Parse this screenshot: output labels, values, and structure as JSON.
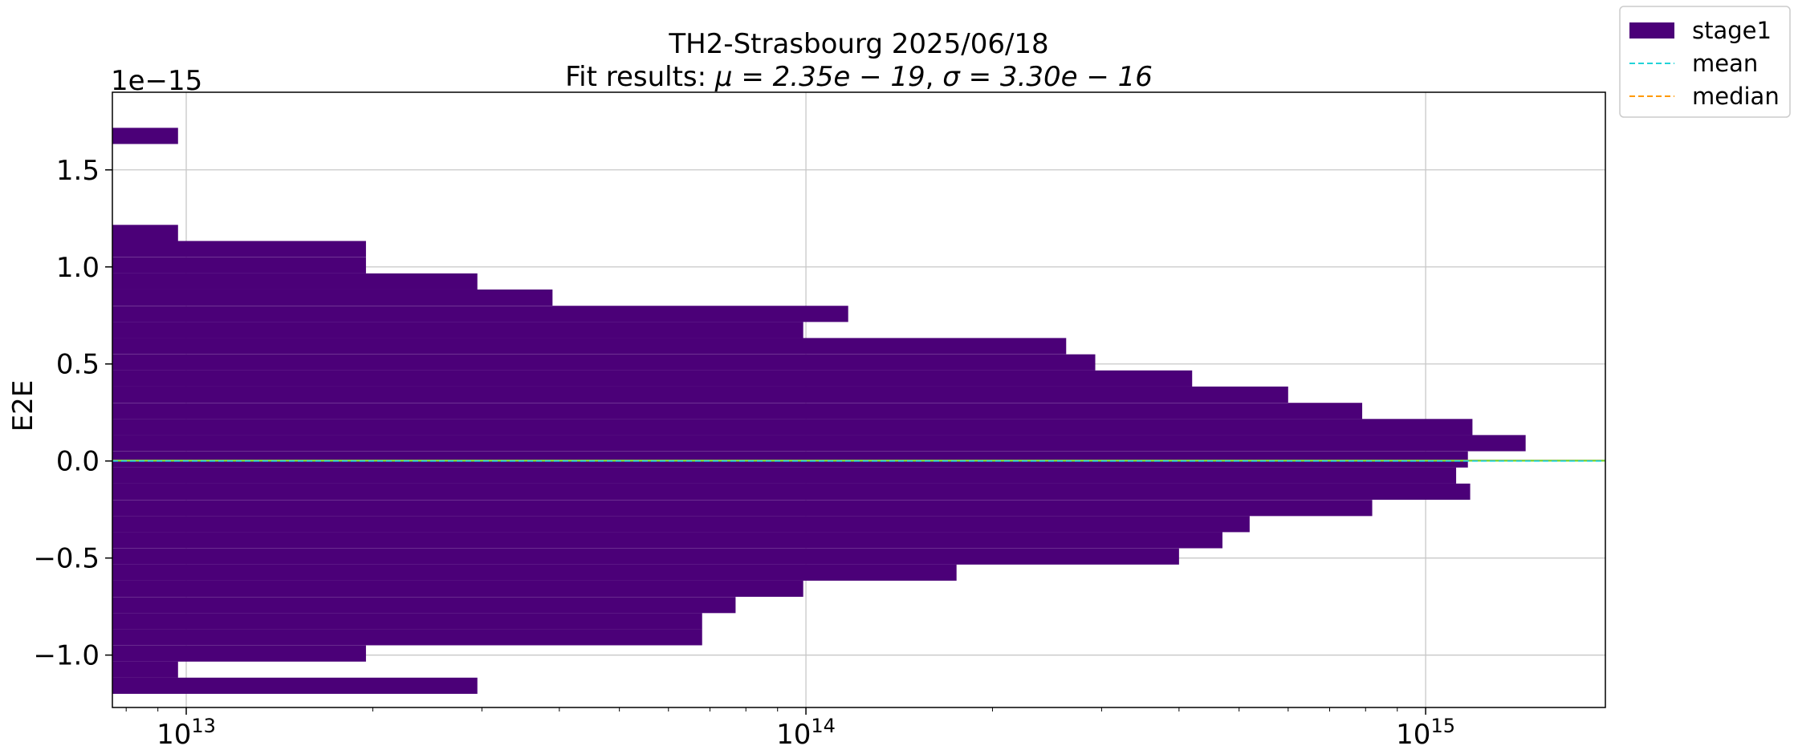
{
  "chart_data": {
    "type": "bar",
    "orientation": "horizontal",
    "title": "TH2-Strasbourg 2025/06/18",
    "subtitle_prefix": "Fit results: ",
    "subtitle_mu": "μ = 2.35e − 19",
    "subtitle_sigma": "σ = 3.30e − 16",
    "xlabel": "",
    "ylabel": "E2E",
    "y_offset_label": "1e−15",
    "x_scale": "log",
    "xlim": [
      7600000000000.0,
      1950000000000000.0
    ],
    "ylim": [
      -1.27,
      1.9
    ],
    "grid": true,
    "x_tick_labels": [
      {
        "value": 10000000000000.0,
        "base": "10",
        "exp": "13"
      },
      {
        "value": 100000000000000.0,
        "base": "10",
        "exp": "14"
      },
      {
        "value": 1000000000000000.0,
        "base": "10",
        "exp": "15"
      }
    ],
    "y_ticks": [
      {
        "value": 1.5,
        "label": "1.5"
      },
      {
        "value": 1.0,
        "label": "1.0"
      },
      {
        "value": 0.5,
        "label": "0.5"
      },
      {
        "value": 0.0,
        "label": "0.0"
      },
      {
        "value": -0.5,
        "label": "−0.5"
      },
      {
        "value": -1.0,
        "label": "−1.0"
      }
    ],
    "bin_width": 0.0833,
    "bars_y_unit": "1e-15",
    "bars": [
      {
        "y": 1.675,
        "x": 9700000000000.0
      },
      {
        "y": 1.175,
        "x": 9700000000000.0
      },
      {
        "y": 1.092,
        "x": 19500000000000.0
      },
      {
        "y": 1.008,
        "x": 19500000000000.0
      },
      {
        "y": 0.925,
        "x": 29500000000000.0
      },
      {
        "y": 0.842,
        "x": 39000000000000.0
      },
      {
        "y": 0.758,
        "x": 117000000000000.0
      },
      {
        "y": 0.675,
        "x": 99000000000000.0
      },
      {
        "y": 0.592,
        "x": 263000000000000.0
      },
      {
        "y": 0.508,
        "x": 293000000000000.0
      },
      {
        "y": 0.425,
        "x": 420000000000000.0
      },
      {
        "y": 0.342,
        "x": 600000000000000.0
      },
      {
        "y": 0.258,
        "x": 790000000000000.0
      },
      {
        "y": 0.175,
        "x": 1190000000000000.0
      },
      {
        "y": 0.092,
        "x": 1450000000000000.0
      },
      {
        "y": 0.008,
        "x": 1170000000000000.0
      },
      {
        "y": -0.075,
        "x": 1120000000000000.0
      },
      {
        "y": -0.158,
        "x": 1180000000000000.0
      },
      {
        "y": -0.242,
        "x": 820000000000000.0
      },
      {
        "y": -0.325,
        "x": 520000000000000.0
      },
      {
        "y": -0.408,
        "x": 470000000000000.0
      },
      {
        "y": -0.492,
        "x": 400000000000000.0
      },
      {
        "y": -0.575,
        "x": 175000000000000.0
      },
      {
        "y": -0.658,
        "x": 99000000000000.0
      },
      {
        "y": -0.742,
        "x": 77000000000000.0
      },
      {
        "y": -0.825,
        "x": 68000000000000.0
      },
      {
        "y": -0.908,
        "x": 68000000000000.0
      },
      {
        "y": -0.992,
        "x": 19500000000000.0
      },
      {
        "y": -1.075,
        "x": 9700000000000.0
      },
      {
        "y": -1.158,
        "x": 29500000000000.0
      }
    ],
    "mean": 0.000235,
    "median": 0.002,
    "series": [
      {
        "name": "stage1",
        "kind": "bar",
        "color": "#4b0078"
      },
      {
        "name": "mean",
        "kind": "line",
        "color": "#22d3d8",
        "style": "dashed"
      },
      {
        "name": "median",
        "kind": "line",
        "color": "#ff9900",
        "style": "dashed"
      }
    ],
    "extra_line_color": "#7fd63a",
    "legend_placement": "outside top-right"
  }
}
